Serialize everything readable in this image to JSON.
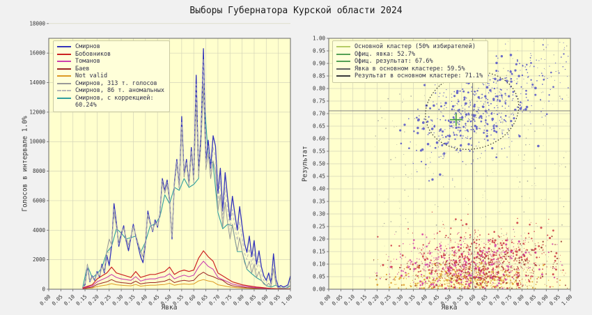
{
  "title": "Выборы Губернатора Курской области 2024",
  "colors": {
    "fig_bg": "#f1f1f1",
    "plot_bg": "#ffffcd",
    "grid": "#d4d4b8",
    "spine": "#666666",
    "tick": "#333333",
    "legend_bg": "#ffffd9",
    "legend_border": "#c9c9a2"
  },
  "chart_data": [
    {
      "type": "line",
      "xlabel": "Явка",
      "ylabel": "Голосов в интервале 1.0%",
      "xlim": [
        0,
        1
      ],
      "ylim": [
        0,
        17000
      ],
      "xtick_step": 0.05,
      "ytick_step": 2000,
      "grid": true,
      "legend": [
        {
          "label": "Смирнов",
          "color": "#3333bb"
        },
        {
          "label": "Бобовников",
          "color": "#cc2222"
        },
        {
          "label": "Томанов",
          "color": "#cc3fae"
        },
        {
          "label": "Баев",
          "color": "#9b2424"
        },
        {
          "label": "Not valid",
          "color": "#dd9922"
        },
        {
          "label": "Смирнов, 313 т. голосов",
          "color": "#999999"
        },
        {
          "label": "Смирнов, 86 т. аномальных",
          "color": "#b8b8b8",
          "dash": true
        },
        {
          "label": "Смирнов, с коррекцией:",
          "label2": "60.24%",
          "color": "#2f9e9e"
        }
      ],
      "series": [
        {
          "key": "smirnov-corrected",
          "name": "Смирнов, с коррекцией: 60.24%",
          "color": "#2f9e9e",
          "lw": 1.1,
          "z": 1,
          "x0": 0.14,
          "dx": 0.02,
          "values": [
            90,
            1600,
            780,
            1050,
            1450,
            2500,
            2900,
            4100,
            3800,
            3400,
            3500,
            3600,
            2500,
            3200,
            4300,
            4400,
            4900,
            6400,
            5800,
            6900,
            6700,
            7500,
            6900,
            7100,
            7500,
            13600,
            9000,
            8500,
            5200,
            4100,
            4400,
            4300,
            2550,
            2550,
            1350,
            1050,
            780,
            580,
            240,
            140,
            280,
            85,
            65,
            240
          ]
        },
        {
          "key": "smirnov",
          "name": "Смирнов",
          "color": "#3333bb",
          "lw": 1.3,
          "z": 2,
          "x0": 0.14,
          "dx": 0.01,
          "values": [
            100,
            300,
            1600,
            500,
            900,
            600,
            1200,
            800,
            1700,
            1100,
            2300,
            1600,
            2900,
            5800,
            4500,
            2900,
            3700,
            4300,
            3300,
            2600,
            3500,
            4400,
            3600,
            2900,
            2200,
            1800,
            3100,
            5300,
            4500,
            3900,
            4700,
            4200,
            5100,
            7500,
            6700,
            7400,
            6000,
            3400,
            7200,
            8800,
            6900,
            11700,
            7800,
            8800,
            7100,
            9600,
            7400,
            14500,
            7900,
            10500,
            16300,
            8700,
            10100,
            8200,
            10400,
            9700,
            6500,
            8200,
            5300,
            7900,
            6200,
            4700,
            6300,
            5100,
            4000,
            5600,
            4300,
            3100,
            2500,
            3600,
            2200,
            3300,
            1700,
            2600,
            1500,
            900,
            600,
            1100,
            400,
            2400,
            700,
            150,
            250,
            150,
            200,
            300,
            900
          ]
        },
        {
          "key": "smirnov-model",
          "name": "Смирнов, 313 т. голосов",
          "color": "#999999",
          "lw": 1,
          "z": 3,
          "x0": 0.14,
          "dx": 0.01,
          "values": [
            100,
            400,
            1700,
            600,
            800,
            700,
            1100,
            900,
            1500,
            1300,
            2600,
            3400,
            3000,
            5200,
            4200,
            3200,
            3900,
            4100,
            3500,
            3000,
            3600,
            4200,
            3700,
            3100,
            2600,
            2200,
            3300,
            5000,
            4400,
            4000,
            4500,
            4300,
            5000,
            7200,
            6500,
            7100,
            5900,
            3600,
            7000,
            8500,
            6800,
            11000,
            7600,
            8500,
            7000,
            9200,
            7200,
            12600,
            7600,
            9800,
            13900,
            8100,
            9200,
            7500,
            8700,
            8000,
            5300,
            6400,
            4200,
            5900,
            4500,
            3400,
            4400,
            3400,
            2600,
            3500,
            2600,
            1800,
            1400,
            1900,
            1100,
            1700,
            800,
            1200,
            600,
            350,
            250,
            400,
            150,
            1400,
            300,
            60,
            90,
            60,
            70,
            100,
            250
          ]
        },
        {
          "key": "smirnov-anomalous",
          "name": "Смирнов, 86 т. аномальных",
          "color": "#b8b8b8",
          "lw": 1,
          "dash": "4 3",
          "z": 4,
          "x0": 0.14,
          "dx": 0.01,
          "values": [
            100,
            350,
            1650,
            550,
            850,
            650,
            1150,
            850,
            1600,
            1200,
            2450,
            2500,
            2950,
            5500,
            4350,
            3050,
            3800,
            4200,
            3400,
            2800,
            3550,
            4300,
            3650,
            3000,
            2400,
            2000,
            3200,
            5150,
            4450,
            3950,
            4600,
            4250,
            5050,
            7350,
            6600,
            7250,
            5950,
            3500,
            7100,
            8650,
            6850,
            11400,
            7700,
            8650,
            7050,
            9400,
            7300,
            13900,
            7750,
            10200,
            15600,
            8400,
            9700,
            7900,
            9600,
            8900,
            5900,
            7300,
            4800,
            6900,
            5400,
            4050,
            5400,
            4250,
            3300,
            4550,
            3500,
            2450,
            2000,
            2750,
            1650,
            2500,
            1300,
            1900,
            1050,
            600,
            450,
            750,
            280,
            1900,
            500,
            100,
            170,
            100,
            140,
            200,
            550
          ]
        },
        {
          "key": "not-valid",
          "name": "Not valid",
          "color": "#dd9922",
          "lw": 1,
          "z": 5,
          "x0": 0.14,
          "dx": 0.02,
          "values": [
            30,
            60,
            90,
            180,
            240,
            290,
            380,
            300,
            270,
            250,
            230,
            320,
            210,
            250,
            270,
            270,
            300,
            320,
            400,
            270,
            330,
            360,
            330,
            360,
            560,
            650,
            560,
            500,
            300,
            240,
            180,
            130,
            100,
            80,
            65,
            50,
            40,
            30,
            22,
            14,
            10,
            7,
            4,
            8
          ]
        },
        {
          "key": "baev",
          "name": "Баев",
          "color": "#9b2424",
          "lw": 1,
          "z": 6,
          "x0": 0.14,
          "dx": 0.02,
          "values": [
            40,
            100,
            140,
            320,
            420,
            500,
            650,
            500,
            450,
            420,
            380,
            550,
            360,
            420,
            450,
            450,
            500,
            550,
            680,
            450,
            550,
            600,
            550,
            600,
            950,
            1150,
            950,
            850,
            700,
            600,
            350,
            230,
            180,
            140,
            110,
            90,
            70,
            55,
            38,
            22,
            16,
            10,
            6,
            12
          ]
        },
        {
          "key": "tomanov",
          "name": "Томанов",
          "color": "#cc3fae",
          "lw": 1.1,
          "z": 7,
          "x0": 0.14,
          "dx": 0.02,
          "values": [
            60,
            150,
            220,
            500,
            650,
            800,
            1000,
            800,
            700,
            650,
            600,
            850,
            550,
            650,
            700,
            700,
            800,
            850,
            1050,
            700,
            850,
            950,
            850,
            950,
            1500,
            1900,
            1550,
            1350,
            800,
            650,
            500,
            350,
            280,
            220,
            180,
            140,
            110,
            85,
            60,
            35,
            28,
            18,
            10,
            20
          ]
        },
        {
          "key": "bobovnikov",
          "name": "Бобовников",
          "color": "#cc2222",
          "lw": 1.2,
          "z": 8,
          "x0": 0.14,
          "dx": 0.02,
          "values": [
            80,
            200,
            300,
            700,
            900,
            1100,
            1500,
            1100,
            1000,
            900,
            800,
            1200,
            800,
            900,
            1000,
            1000,
            1100,
            1200,
            1500,
            1000,
            1200,
            1300,
            1200,
            1300,
            2100,
            2600,
            2200,
            1900,
            1100,
            900,
            700,
            500,
            400,
            300,
            250,
            200,
            150,
            120,
            80,
            50,
            40,
            25,
            15,
            30
          ]
        }
      ]
    },
    {
      "type": "scatter",
      "xlabel": "Явка",
      "ylabel": "Результат",
      "xlim": [
        0,
        1
      ],
      "ylim": [
        0,
        1
      ],
      "xtick_step": 0.05,
      "ytick_step": 0.05,
      "grid": true,
      "legend": [
        {
          "label": "Основной кластер (50% избирателей)",
          "color": "#b5cc66"
        },
        {
          "label": "Офиц. явка: 52.7%",
          "color": "#55a055"
        },
        {
          "label": "Офиц. результат: 67.6%",
          "color": "#55a055"
        },
        {
          "label": "Явка в основном кластере: 59.5%",
          "color": "#606060"
        },
        {
          "label": "Результат в основном кластере: 71.1%",
          "color": "#383838"
        }
      ],
      "official": {
        "turnout": 0.527,
        "result": 0.676,
        "color": "#3f9b3f"
      },
      "cluster": {
        "turnout": 0.595,
        "result": 0.711,
        "line_color": "#808080",
        "ellipse": {
          "cx": 0.593,
          "cy": 0.712,
          "rx": 0.195,
          "ry": 0.152,
          "rot": -15,
          "color": "#222222"
        }
      },
      "point_clusters": [
        {
          "key": "gray-small-stations",
          "color": "#9a9a9a",
          "n": 300,
          "dist": "uniform",
          "xmin": 0.17,
          "xmax": 0.995,
          "ymin": 0.01,
          "ymax": 0.995,
          "rmin": 0.4,
          "rmax": 0.9,
          "seed": 13
        },
        {
          "key": "notvalid-orange",
          "color": "#dc9c26",
          "n": 430,
          "dist": "normal",
          "cx": 0.57,
          "cy": 0.038,
          "sx": 0.17,
          "sy": 0.03,
          "rho": 0,
          "rmin": 0.5,
          "rmax": 1.5,
          "seed": 17
        },
        {
          "key": "baev-darkred",
          "color": "#98322a",
          "n": 320,
          "dist": "normal",
          "cx": 0.64,
          "cy": 0.085,
          "sx": 0.16,
          "sy": 0.05,
          "rho": 0.1,
          "rmin": 0.5,
          "rmax": 1.4,
          "seed": 16
        },
        {
          "key": "tomanov-magenta",
          "color": "#d23aa6",
          "n": 470,
          "dist": "normal",
          "cx": 0.56,
          "cy": 0.1,
          "sx": 0.15,
          "sy": 0.052,
          "rho": 0.1,
          "rmin": 0.5,
          "rmax": 1.6,
          "seed": 15
        },
        {
          "key": "bobovnikov-red",
          "color": "#cc3340",
          "n": 640,
          "dist": "normal",
          "cx": 0.63,
          "cy": 0.115,
          "sx": 0.17,
          "sy": 0.062,
          "rho": 0.15,
          "rmin": 0.5,
          "rmax": 1.6,
          "seed": 14
        },
        {
          "key": "smirnov-blue-main",
          "color": "#5252c8",
          "n": 520,
          "dist": "normal",
          "cx": 0.6,
          "cy": 0.7,
          "sx": 0.115,
          "sy": 0.1,
          "rho": 0.45,
          "rmin": 0.6,
          "rmax": 1.9,
          "seed": 11
        },
        {
          "key": "smirnov-blue-high",
          "color": "#5252c8",
          "n": 90,
          "dist": "normal",
          "cx": 0.87,
          "cy": 0.88,
          "sx": 0.075,
          "sy": 0.075,
          "rho": 0.1,
          "rmin": 0.5,
          "rmax": 1.4,
          "seed": 12
        }
      ]
    }
  ]
}
